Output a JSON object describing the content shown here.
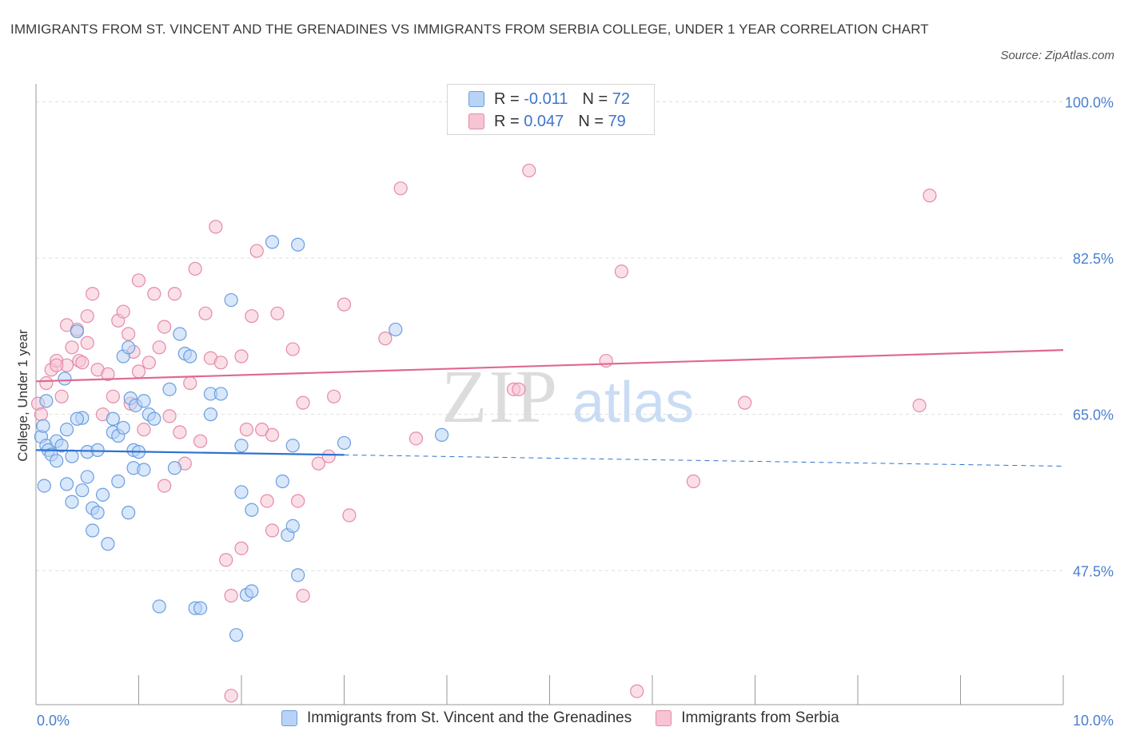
{
  "header": {
    "title": "IMMIGRANTS FROM ST. VINCENT AND THE GRENADINES VS IMMIGRANTS FROM SERBIA COLLEGE, UNDER 1 YEAR CORRELATION CHART",
    "source": "Source: ZipAtlas.com"
  },
  "watermark": {
    "zip": "ZIP",
    "atlas": "atlas"
  },
  "legend": {
    "blue": {
      "r_label": "R = ",
      "r_value": "-0.011",
      "n_label": "N = ",
      "n_value": "72"
    },
    "pink": {
      "r_label": "R = ",
      "r_value": "0.047",
      "n_label": "N = ",
      "n_value": "79"
    }
  },
  "colors": {
    "blue_fill": "#b8d3f5",
    "blue_stroke": "#6a9ee0",
    "blue_line": "#2f72d0",
    "pink_fill": "#f6c4d3",
    "pink_stroke": "#e58aa8",
    "pink_line": "#e06890",
    "grid": "#dddddd",
    "tick_label": "#4a7fd0"
  },
  "chart_data": {
    "type": "scatter",
    "title": "IMMIGRANTS FROM ST. VINCENT AND THE GRENADINES VS IMMIGRANTS FROM SERBIA COLLEGE, UNDER 1 YEAR CORRELATION CHART",
    "xlabel": "",
    "ylabel": "College, Under 1 year",
    "xlim": [
      0,
      10
    ],
    "ylim": [
      32.5,
      102
    ],
    "x_tick_labels": [
      "0.0%",
      "10.0%"
    ],
    "y_ticks": [
      47.5,
      65.0,
      82.5,
      100.0
    ],
    "y_tick_labels": [
      "47.5%",
      "65.0%",
      "82.5%",
      "100.0%"
    ],
    "grid": true,
    "legend_position": "top-center",
    "series": [
      {
        "name": "Immigrants from St. Vincent and the Grenadines",
        "color": "blue",
        "R": -0.011,
        "N": 72,
        "trend": {
          "x0": 0.0,
          "y0": 61.0,
          "x1": 10.0,
          "y1": 59.2,
          "solid_until_x": 3.0
        },
        "points": [
          [
            0.05,
            62.5
          ],
          [
            0.07,
            63.7
          ],
          [
            0.1,
            61.5
          ],
          [
            0.12,
            61.0
          ],
          [
            0.15,
            60.5
          ],
          [
            0.08,
            57.0
          ],
          [
            0.1,
            66.5
          ],
          [
            0.2,
            62.0
          ],
          [
            0.2,
            59.8
          ],
          [
            0.25,
            61.5
          ],
          [
            0.28,
            69.0
          ],
          [
            0.3,
            63.3
          ],
          [
            0.3,
            57.2
          ],
          [
            0.35,
            60.3
          ],
          [
            0.35,
            55.2
          ],
          [
            0.4,
            74.3
          ],
          [
            0.45,
            64.6
          ],
          [
            0.45,
            56.5
          ],
          [
            0.5,
            58.0
          ],
          [
            0.5,
            60.8
          ],
          [
            0.55,
            54.5
          ],
          [
            0.55,
            52.0
          ],
          [
            0.6,
            54.0
          ],
          [
            0.65,
            56.0
          ],
          [
            0.7,
            50.5
          ],
          [
            0.75,
            64.5
          ],
          [
            0.75,
            63.0
          ],
          [
            0.8,
            57.5
          ],
          [
            0.8,
            62.6
          ],
          [
            0.85,
            63.5
          ],
          [
            0.85,
            71.5
          ],
          [
            0.9,
            54.0
          ],
          [
            0.9,
            72.5
          ],
          [
            0.92,
            66.8
          ],
          [
            0.95,
            59.0
          ],
          [
            0.95,
            61.0
          ],
          [
            0.97,
            66.0
          ],
          [
            1.0,
            60.8
          ],
          [
            1.05,
            66.5
          ],
          [
            1.05,
            58.8
          ],
          [
            1.1,
            65.0
          ],
          [
            1.15,
            64.5
          ],
          [
            1.2,
            43.5
          ],
          [
            1.3,
            67.8
          ],
          [
            1.35,
            59.0
          ],
          [
            1.4,
            74.0
          ],
          [
            1.45,
            71.8
          ],
          [
            1.5,
            71.5
          ],
          [
            1.55,
            43.3
          ],
          [
            1.6,
            43.3
          ],
          [
            1.7,
            67.3
          ],
          [
            1.7,
            65.0
          ],
          [
            1.8,
            67.3
          ],
          [
            1.9,
            77.8
          ],
          [
            1.95,
            40.3
          ],
          [
            2.0,
            56.3
          ],
          [
            2.0,
            61.5
          ],
          [
            2.05,
            44.8
          ],
          [
            2.1,
            45.2
          ],
          [
            2.1,
            54.3
          ],
          [
            2.3,
            84.3
          ],
          [
            2.4,
            57.5
          ],
          [
            2.45,
            51.5
          ],
          [
            2.5,
            52.5
          ],
          [
            2.5,
            61.5
          ],
          [
            2.55,
            84.0
          ],
          [
            2.55,
            47.0
          ],
          [
            3.0,
            61.8
          ],
          [
            3.5,
            74.5
          ],
          [
            3.95,
            62.7
          ],
          [
            0.4,
            64.5
          ],
          [
            0.6,
            61.0
          ]
        ]
      },
      {
        "name": "Immigrants from Serbia",
        "color": "pink",
        "R": 0.047,
        "N": 79,
        "trend": {
          "x0": 0.0,
          "y0": 68.7,
          "x1": 10.0,
          "y1": 72.2
        },
        "points": [
          [
            0.02,
            66.2
          ],
          [
            0.05,
            65.0
          ],
          [
            0.1,
            68.5
          ],
          [
            0.15,
            70.0
          ],
          [
            0.2,
            71.0
          ],
          [
            0.25,
            67.0
          ],
          [
            0.3,
            70.5
          ],
          [
            0.3,
            75.0
          ],
          [
            0.35,
            72.5
          ],
          [
            0.4,
            74.5
          ],
          [
            0.42,
            71.0
          ],
          [
            0.45,
            70.8
          ],
          [
            0.5,
            73.0
          ],
          [
            0.5,
            76.0
          ],
          [
            0.55,
            78.5
          ],
          [
            0.6,
            70.0
          ],
          [
            0.65,
            65.0
          ],
          [
            0.7,
            69.5
          ],
          [
            0.75,
            67.0
          ],
          [
            0.8,
            75.5
          ],
          [
            0.85,
            76.5
          ],
          [
            0.9,
            74.0
          ],
          [
            0.92,
            66.2
          ],
          [
            0.95,
            72.0
          ],
          [
            1.0,
            69.8
          ],
          [
            1.0,
            80.0
          ],
          [
            1.05,
            63.3
          ],
          [
            1.1,
            70.8
          ],
          [
            1.15,
            78.5
          ],
          [
            1.2,
            72.5
          ],
          [
            1.25,
            74.8
          ],
          [
            1.3,
            64.8
          ],
          [
            1.35,
            78.5
          ],
          [
            1.4,
            63.0
          ],
          [
            1.45,
            59.5
          ],
          [
            1.5,
            68.5
          ],
          [
            1.55,
            81.3
          ],
          [
            1.6,
            62.0
          ],
          [
            1.65,
            76.3
          ],
          [
            1.7,
            71.3
          ],
          [
            1.75,
            86.0
          ],
          [
            1.8,
            70.8
          ],
          [
            1.85,
            48.7
          ],
          [
            1.9,
            44.7
          ],
          [
            1.9,
            33.5
          ],
          [
            2.0,
            50.0
          ],
          [
            2.0,
            71.5
          ],
          [
            2.05,
            63.3
          ],
          [
            2.1,
            76.0
          ],
          [
            2.15,
            83.3
          ],
          [
            2.2,
            63.3
          ],
          [
            2.25,
            55.3
          ],
          [
            2.3,
            52.0
          ],
          [
            2.3,
            62.7
          ],
          [
            2.35,
            76.3
          ],
          [
            2.5,
            72.3
          ],
          [
            2.55,
            55.3
          ],
          [
            2.6,
            66.3
          ],
          [
            2.6,
            44.7
          ],
          [
            2.75,
            59.5
          ],
          [
            2.85,
            60.3
          ],
          [
            2.9,
            67.0
          ],
          [
            3.0,
            77.3
          ],
          [
            3.05,
            53.7
          ],
          [
            3.4,
            73.5
          ],
          [
            3.55,
            90.3
          ],
          [
            3.7,
            62.3
          ],
          [
            4.65,
            67.8
          ],
          [
            4.7,
            67.8
          ],
          [
            4.8,
            92.3
          ],
          [
            5.55,
            71.0
          ],
          [
            5.7,
            81.0
          ],
          [
            5.85,
            34.0
          ],
          [
            6.4,
            57.5
          ],
          [
            6.9,
            66.3
          ],
          [
            8.6,
            66.0
          ],
          [
            8.7,
            89.5
          ],
          [
            0.2,
            70.5
          ],
          [
            1.25,
            57.0
          ]
        ]
      }
    ]
  },
  "bottom_legend": {
    "blue_label": "Immigrants from St. Vincent and the Grenadines",
    "pink_label": "Immigrants from Serbia"
  }
}
